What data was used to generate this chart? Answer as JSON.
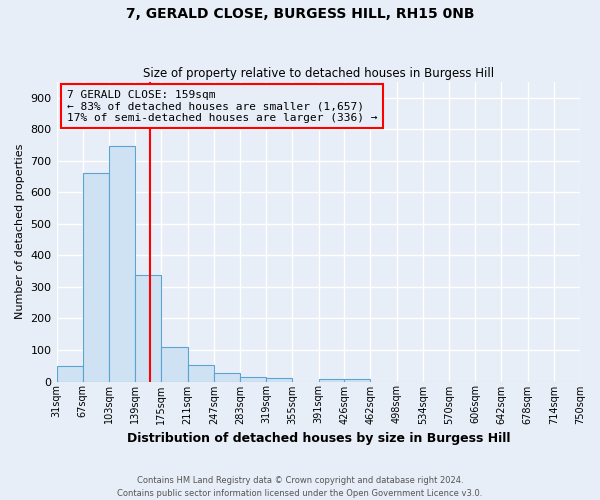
{
  "title": "7, GERALD CLOSE, BURGESS HILL, RH15 0NB",
  "subtitle": "Size of property relative to detached houses in Burgess Hill",
  "xlabel": "Distribution of detached houses by size in Burgess Hill",
  "ylabel": "Number of detached properties",
  "footer_line1": "Contains HM Land Registry data © Crown copyright and database right 2024.",
  "footer_line2": "Contains public sector information licensed under the Open Government Licence v3.0.",
  "bin_edges": [
    31,
    67,
    103,
    139,
    175,
    211,
    247,
    283,
    319,
    355,
    391,
    426,
    462,
    498,
    534,
    570,
    606,
    642,
    678,
    714,
    750
  ],
  "bin_labels": [
    "31sqm",
    "67sqm",
    "103sqm",
    "139sqm",
    "175sqm",
    "211sqm",
    "247sqm",
    "283sqm",
    "319sqm",
    "355sqm",
    "391sqm",
    "426sqm",
    "462sqm",
    "498sqm",
    "534sqm",
    "570sqm",
    "606sqm",
    "642sqm",
    "678sqm",
    "714sqm",
    "750sqm"
  ],
  "counts": [
    50,
    660,
    748,
    338,
    108,
    52,
    27,
    15,
    10,
    0,
    8,
    8,
    0,
    0,
    0,
    0,
    0,
    0,
    0,
    0
  ],
  "property_size": 159,
  "annotation_line1": "7 GERALD CLOSE: 159sqm",
  "annotation_line2": "← 83% of detached houses are smaller (1,657)",
  "annotation_line3": "17% of semi-detached houses are larger (336) →",
  "bar_color": "#cfe2f3",
  "bar_edge_color": "#5ba3d0",
  "vline_color": "red",
  "annotation_box_edgecolor": "red",
  "annotation_fontsize": 8,
  "ylim": [
    0,
    950
  ],
  "yticks": [
    0,
    100,
    200,
    300,
    400,
    500,
    600,
    700,
    800,
    900
  ],
  "background_color": "#e8eef7",
  "grid_color": "white"
}
